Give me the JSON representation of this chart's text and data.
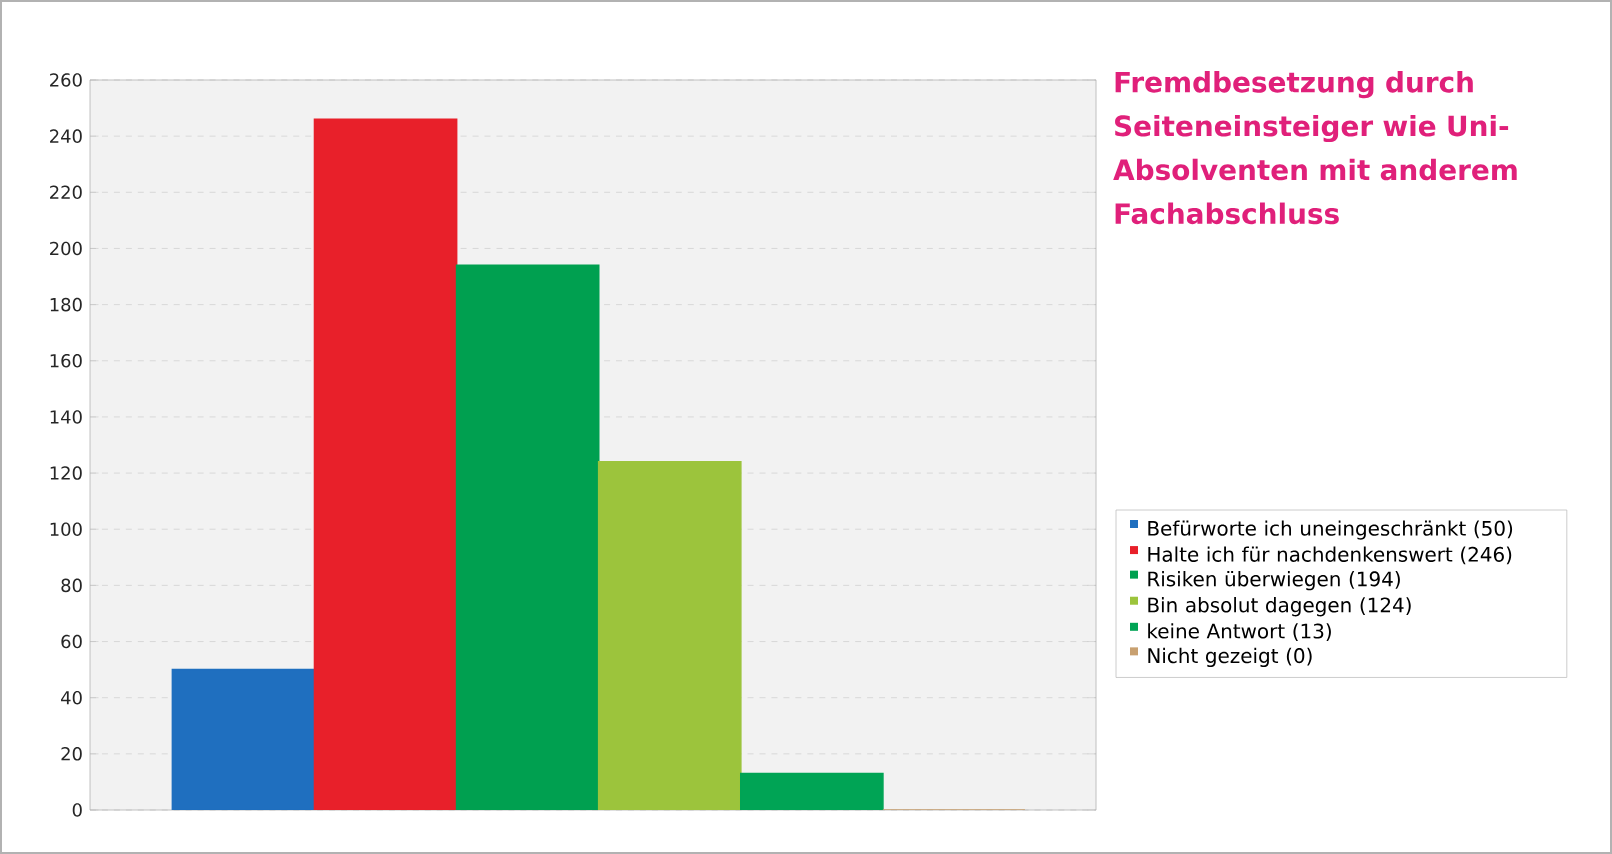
{
  "chart_data": {
    "type": "bar",
    "title": "Fremdbesetzung durch Seiteneinsteiger wie Uni-Absolventen mit anderem Fachabschluss",
    "categories": [
      null,
      null,
      null,
      null,
      null,
      null
    ],
    "series": [
      {
        "name": "Befürworte ich uneingeschränkt (50)",
        "color": "#1f6fbf",
        "values": [
          50,
          null,
          null,
          null,
          null,
          null
        ]
      },
      {
        "name": "Halte ich für nachdenkenswert (246)",
        "color": "#e8202a",
        "values": [
          null,
          246,
          null,
          null,
          null,
          null
        ]
      },
      {
        "name": "Risiken überwiegen (194)",
        "color": "#00a050",
        "values": [
          null,
          null,
          194,
          null,
          null,
          null
        ]
      },
      {
        "name": "Bin absolut dagegen (124)",
        "color": "#9cc43c",
        "values": [
          null,
          null,
          null,
          124,
          null,
          null
        ]
      },
      {
        "name": "keine Antwort (13)",
        "color": "#00a455",
        "values": [
          null,
          null,
          null,
          null,
          13,
          null
        ]
      },
      {
        "name": "Nicht gezeigt (0)",
        "color": "#c8a070",
        "values": [
          null,
          null,
          null,
          null,
          null,
          0
        ]
      }
    ],
    "ylim": [
      0,
      260
    ],
    "yticks": [
      0,
      20,
      40,
      60,
      80,
      100,
      120,
      140,
      160,
      180,
      200,
      220,
      240,
      260
    ],
    "grid": "y",
    "legend": "right"
  }
}
